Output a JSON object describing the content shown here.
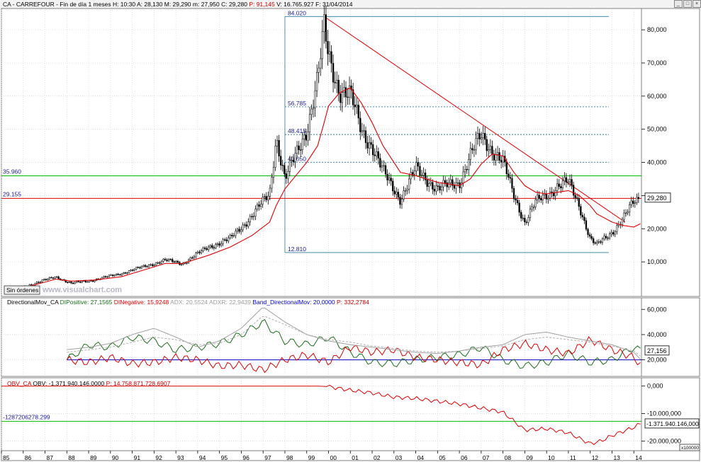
{
  "header": {
    "symbol": "CA - CARREFOUR",
    "period": "Fin de día 1 meses",
    "stats": [
      {
        "k": "H:",
        "v": "10:30"
      },
      {
        "k": "A:",
        "v": "28,130"
      },
      {
        "k": "M:",
        "v": "29,290"
      },
      {
        "k": "m:",
        "v": "27,950"
      },
      {
        "k": "C:",
        "v": "29,280"
      },
      {
        "k": "P:",
        "v": "91,145",
        "color": "#cc0000"
      },
      {
        "k": "V:",
        "v": "16.765.927"
      },
      {
        "k": "F:",
        "v": "31/04/2014"
      }
    ]
  },
  "buttons": {
    "sin_ordenes": "Sin órdenes",
    "scale_bottom": "x100000"
  },
  "watermark": "www.visualchart.com",
  "colors": {
    "price": "#000000",
    "ma": "#e00000",
    "level_red": "#e00000",
    "level_green": "#00bb00",
    "fib": "#2a7a9a",
    "dip": "#1a6e1a",
    "din": "#e00000",
    "adx": "#a0a0a0",
    "adxr": "#b0b0b0",
    "band": "#0000cc",
    "obv": "#e00000",
    "label_blue": "#1a1aa0"
  },
  "chart_data": [
    {
      "type": "candlestick",
      "title": "CA - CARREFOUR",
      "x_ticks": [
        "85",
        "86",
        "87",
        "88",
        "89",
        "90",
        "91",
        "92",
        "93",
        "94",
        "95",
        "96",
        "97",
        "98",
        "99",
        "00",
        "01",
        "02",
        "03",
        "04",
        "05",
        "06",
        "07",
        "08",
        "09",
        "10",
        "11",
        "12",
        "13",
        "14"
      ],
      "y_ticks": [
        "10,000",
        "20,000",
        "30,000",
        "40,000",
        "50,000",
        "60,000",
        "70,000",
        "80,000"
      ],
      "ylim": [
        0,
        86
      ],
      "x": [
        1985.5,
        1986.5,
        1987.5,
        1988.2,
        1989.2,
        1990.5,
        1991.5,
        1992.5,
        1993.3,
        1994.5,
        1995.5,
        1996.5,
        1997.3,
        1997.6,
        1998.0,
        1998.5,
        1999.0,
        1999.5,
        1999.8,
        2000.0,
        2000.5,
        2001.0,
        2001.5,
        2002.0,
        2002.5,
        2003.0,
        2003.3,
        2004.0,
        2005.0,
        2006.0,
        2006.5,
        2007.0,
        2007.5,
        2008.0,
        2008.5,
        2009.0,
        2009.5,
        2010.0,
        2010.5,
        2011.0,
        2011.5,
        2012.0,
        2012.3,
        2013.0,
        2013.5,
        2014.0,
        2014.3
      ],
      "close": [
        1.5,
        3.5,
        5.5,
        3.5,
        4.5,
        6.5,
        8.5,
        10.5,
        9.5,
        14.5,
        17.0,
        24.0,
        30.5,
        48.0,
        35.0,
        42.0,
        50.0,
        65.0,
        80.0,
        72.0,
        62.0,
        60.0,
        50.0,
        45.0,
        37.0,
        32.0,
        29.0,
        38.0,
        32.0,
        34.0,
        42.0,
        48.0,
        44.0,
        40.0,
        30.0,
        22.0,
        28.0,
        30.0,
        33.0,
        34.0,
        27.0,
        17.0,
        15.0,
        19.0,
        23.0,
        28.0,
        29.28
      ],
      "moving_average": [
        1.8,
        3.0,
        4.8,
        4.2,
        4.5,
        5.5,
        7.5,
        9.5,
        9.5,
        12.0,
        14.5,
        18.0,
        22.0,
        27.0,
        32.0,
        36.0,
        40.0,
        45.0,
        52.0,
        57.0,
        61.0,
        62.5,
        58.0,
        52.0,
        45.0,
        40.0,
        37.0,
        36.0,
        34.0,
        33.0,
        35.0,
        39.5,
        42.5,
        42.0,
        37.0,
        33.0,
        31.0,
        30.5,
        31.0,
        31.5,
        30.0,
        27.0,
        24.5,
        22.0,
        21.0,
        20.5,
        21.5
      ],
      "levels": [
        {
          "label": "29.155",
          "value": 29.155,
          "color": "red"
        },
        {
          "label": "35.960",
          "value": 35.96,
          "color": "green"
        }
      ],
      "fibonacci": [
        {
          "label": "84.020",
          "value": 84.02
        },
        {
          "label": "56.785",
          "value": 56.785
        },
        {
          "label": "48.415",
          "value": 48.415
        },
        {
          "label": "40.050",
          "value": 40.05
        },
        {
          "label": "12.810",
          "value": 12.81
        }
      ],
      "trendline": [
        {
          "x": 1999.8,
          "y": 84.0
        },
        {
          "x": 2013.6,
          "y": 22.0
        }
      ],
      "last_value": "29,280"
    },
    {
      "type": "line",
      "title_items": [
        {
          "text": "DirectionalMov_CA",
          "color": "#000000"
        },
        {
          "text": "DIPositive: 27,1565",
          "color": "#1a6e1a"
        },
        {
          "text": "DINegative: 15,9248",
          "color": "#e00000"
        },
        {
          "text": "ADX: 20,5524",
          "color": "#a0a0a0"
        },
        {
          "text": "ADXR: 22,9439",
          "color": "#a0a0a0"
        },
        {
          "text": "Band_DirectionalMov: 20,0000",
          "color": "#0000cc"
        },
        {
          "text": "P: 332,2784",
          "color": "#cc0000"
        }
      ],
      "y_ticks": [
        "20,000",
        "40,000",
        "60,000"
      ],
      "ylim": [
        8,
        68
      ],
      "x": [
        1988.0,
        1989.0,
        1990.0,
        1991.0,
        1992.0,
        1993.0,
        1994.0,
        1995.0,
        1996.0,
        1997.0,
        1998.0,
        1999.0,
        2000.0,
        2001.0,
        2002.0,
        2003.0,
        2004.0,
        2005.0,
        2006.0,
        2007.0,
        2008.0,
        2009.0,
        2010.0,
        2011.0,
        2012.0,
        2013.0,
        2014.0,
        2014.3
      ],
      "series": [
        {
          "name": "DIPositive",
          "values": [
            20,
            32,
            30,
            38,
            35,
            28,
            30,
            33,
            40,
            50,
            35,
            32,
            38,
            26,
            18,
            17,
            20,
            22,
            24,
            30,
            20,
            15,
            18,
            25,
            18,
            20,
            30,
            27.16
          ]
        },
        {
          "name": "DINegative",
          "values": [
            20,
            18,
            22,
            17,
            18,
            22,
            20,
            15,
            16,
            12,
            20,
            24,
            18,
            30,
            26,
            28,
            22,
            20,
            18,
            16,
            28,
            33,
            28,
            25,
            36,
            28,
            22,
            15.9
          ]
        },
        {
          "name": "ADX",
          "values": [
            28,
            30,
            33,
            40,
            45,
            38,
            30,
            35,
            45,
            62,
            50,
            40,
            35,
            32,
            30,
            28,
            26,
            25,
            27,
            30,
            32,
            40,
            42,
            38,
            35,
            32,
            26,
            20.55
          ]
        },
        {
          "name": "ADXR",
          "values": [
            26,
            28,
            30,
            34,
            38,
            36,
            32,
            33,
            40,
            55,
            48,
            40,
            36,
            34,
            31,
            29,
            27,
            26,
            27,
            29,
            31,
            36,
            38,
            36,
            34,
            31,
            27,
            22.94
          ]
        }
      ],
      "band": 20.0,
      "last_value": "27,156"
    },
    {
      "type": "line",
      "title_items": [
        {
          "text": "OBV_CA",
          "color": "#cc0000"
        },
        {
          "text": "OBV: -1.371.940.146,0000",
          "color": "#000000"
        },
        {
          "text": "P: 14.758.871.728,6907",
          "color": "#cc0000"
        }
      ],
      "y_ticks": [
        "0,000",
        "-10.000,000",
        "-20.000,000"
      ],
      "ylim": [
        -23000,
        2500
      ],
      "x": [
        1985.0,
        1999.5,
        2000.0,
        2001.0,
        2002.0,
        2003.0,
        2004.0,
        2005.0,
        2006.0,
        2007.0,
        2008.0,
        2009.0,
        2010.0,
        2011.0,
        2012.0,
        2012.5,
        2013.0,
        2014.0,
        2014.3
      ],
      "series": [
        {
          "name": "OBV",
          "values": [
            0,
            0,
            -200,
            -1500,
            -2500,
            -4000,
            -4500,
            -5500,
            -6500,
            -8000,
            -9500,
            -16000,
            -15500,
            -17000,
            -21000,
            -20000,
            -18000,
            -15000,
            -13719
          ]
        }
      ],
      "levels": [
        {
          "label": "-1287206278.299",
          "value": -12872
        }
      ],
      "last_value": "-1.371.940.146,000"
    }
  ]
}
